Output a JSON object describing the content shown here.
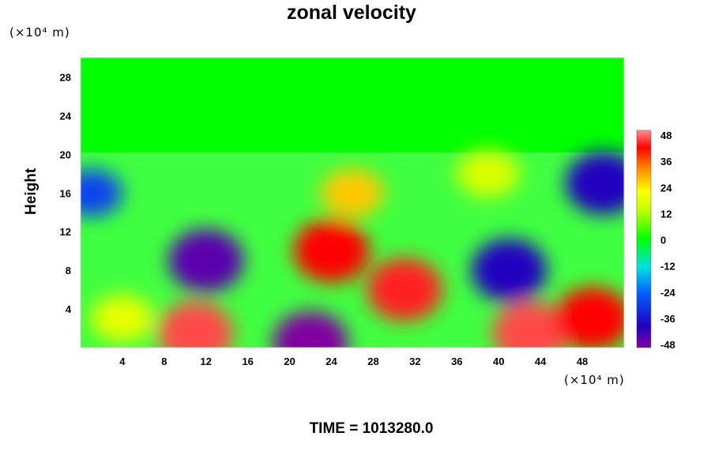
{
  "chart_data": {
    "type": "heatmap",
    "title": "zonal velocity",
    "ylabel": "Height",
    "xlabel": "",
    "x_unit": "(×10⁴ m)",
    "y_unit": "(×10⁴ m)",
    "xlim": [
      0,
      52
    ],
    "ylim": [
      0,
      30
    ],
    "x_ticks": [
      "4",
      "8",
      "12",
      "16",
      "20",
      "24",
      "28",
      "32",
      "36",
      "40",
      "44",
      "48"
    ],
    "y_ticks": [
      "4",
      "8",
      "12",
      "16",
      "20",
      "24",
      "28"
    ],
    "colorbar": {
      "ticks": [
        "48",
        "36",
        "24",
        "12",
        "0",
        "-12",
        "-24",
        "-36",
        "-48"
      ],
      "range": [
        -48,
        48
      ]
    },
    "grid": false,
    "features": [
      {
        "x": 12,
        "y": 9,
        "value": -44
      },
      {
        "x": 24,
        "y": 10,
        "value": 40
      },
      {
        "x": 26,
        "y": 16,
        "value": 26
      },
      {
        "x": 41,
        "y": 8,
        "value": -38
      },
      {
        "x": 31,
        "y": 6,
        "value": 42
      },
      {
        "x": 50,
        "y": 17,
        "value": -38
      },
      {
        "x": 1,
        "y": 16,
        "value": -28
      },
      {
        "x": 11,
        "y": 1.5,
        "value": 44
      },
      {
        "x": 22,
        "y": 0.5,
        "value": -48
      },
      {
        "x": 43,
        "y": 1.5,
        "value": 44
      },
      {
        "x": 4,
        "y": 3,
        "value": 18
      },
      {
        "x": 39,
        "y": 18,
        "value": 16
      },
      {
        "x": 49,
        "y": 3,
        "value": 40
      }
    ]
  },
  "footer": {
    "time": "TIME = 1013280.0"
  }
}
